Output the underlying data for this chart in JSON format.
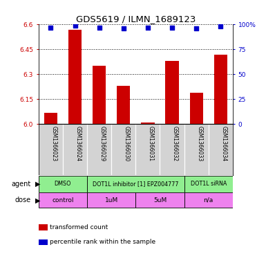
{
  "title": "GDS5619 / ILMN_1689123",
  "samples": [
    "GSM1366023",
    "GSM1366024",
    "GSM1366029",
    "GSM1366030",
    "GSM1366031",
    "GSM1366032",
    "GSM1366033",
    "GSM1366034"
  ],
  "bar_values": [
    6.07,
    6.57,
    6.35,
    6.23,
    6.01,
    6.38,
    6.19,
    6.42
  ],
  "percentile_values": [
    97,
    99,
    97,
    96,
    97,
    97,
    96,
    98
  ],
  "y_min": 6.0,
  "y_max": 6.6,
  "y_ticks": [
    6.0,
    6.15,
    6.3,
    6.45,
    6.6
  ],
  "y_right_ticks": [
    0,
    25,
    50,
    75,
    100
  ],
  "bar_color": "#cc0000",
  "dot_color": "#0000cc",
  "agent_groups": [
    {
      "label": "DMSO",
      "cols": [
        0,
        1
      ],
      "color": "#90ee90"
    },
    {
      "label": "DOT1L inhibitor [1] EPZ004777",
      "cols": [
        2,
        3,
        4,
        5
      ],
      "color": "#90ee90"
    },
    {
      "label": "DOT1L siRNA",
      "cols": [
        6,
        7
      ],
      "color": "#90ee90"
    }
  ],
  "dose_groups": [
    {
      "label": "control",
      "cols": [
        0,
        1
      ],
      "color": "#ee82ee"
    },
    {
      "label": "1uM",
      "cols": [
        2,
        3
      ],
      "color": "#ee82ee"
    },
    {
      "label": "5uM",
      "cols": [
        4,
        5
      ],
      "color": "#ee82ee"
    },
    {
      "label": "n/a",
      "cols": [
        6,
        7
      ],
      "color": "#ee82ee"
    }
  ],
  "sample_bg_color": "#d3d3d3",
  "legend_items": [
    {
      "label": "transformed count",
      "color": "#cc0000"
    },
    {
      "label": "percentile rank within the sample",
      "color": "#0000cc"
    }
  ],
  "agent_label": "agent",
  "dose_label": "dose"
}
